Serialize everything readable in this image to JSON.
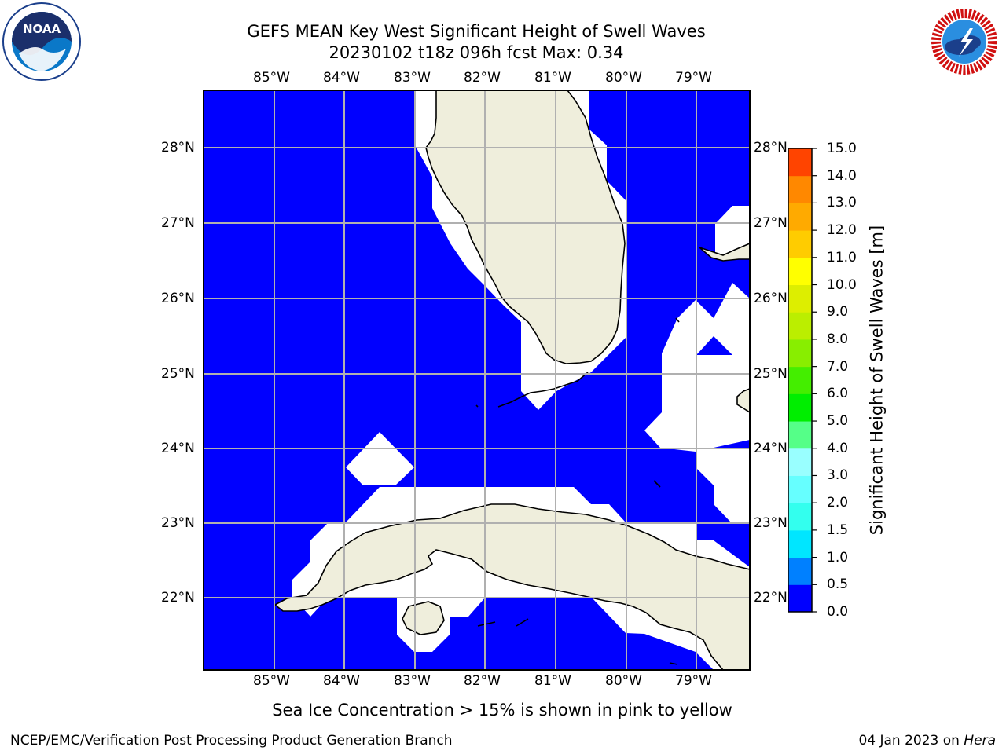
{
  "title_line1": "GEFS MEAN Key West Significant Height of Swell Waves",
  "title_line2": "20230102 t18z 096h fcst   Max: 0.34",
  "logos": {
    "left": "noaa-logo",
    "left_text": "NOAA",
    "right": "national-weather-service-logo"
  },
  "map": {
    "lon_ticks": [
      "85°W",
      "84°W",
      "83°W",
      "82°W",
      "81°W",
      "80°W",
      "79°W"
    ],
    "lat_ticks": [
      "28°N",
      "27°N",
      "26°N",
      "25°N",
      "24°N",
      "23°N",
      "22°N"
    ],
    "lon_range": [
      -86.0,
      -78.3
    ],
    "lat_range": [
      21.1,
      28.8
    ],
    "ocean_color": "#0000ff",
    "land_color": "#efeedc",
    "grid": true
  },
  "colorbar": {
    "label": "Significant Height of Swell Waves [m]",
    "ticks": [
      "0.0",
      "0.5",
      "1.0",
      "1.5",
      "2.0",
      "3.0",
      "4.0",
      "5.0",
      "6.0",
      "7.0",
      "8.0",
      "9.0",
      "10.0",
      "11.0",
      "12.0",
      "13.0",
      "14.0",
      "15.0"
    ],
    "colors": [
      "#0000ff",
      "#0080ff",
      "#00e6ff",
      "#33ffee",
      "#66ffff",
      "#99ffff",
      "#55ff88",
      "#00ee00",
      "#44ee00",
      "#88ee00",
      "#bbee00",
      "#ddee00",
      "#ffff00",
      "#ffcc00",
      "#ffaa00",
      "#ff8800",
      "#ff4400",
      "#ff0000"
    ]
  },
  "note": "Sea Ice Concentration > 15% is shown in pink to yellow",
  "footer_left": "NCEP/EMC/Verification Post Processing Product Generation Branch",
  "footer_date": "04 Jan 2023 on",
  "footer_host": "Hera"
}
